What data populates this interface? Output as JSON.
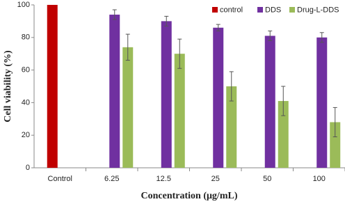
{
  "chart_data": {
    "type": "bar",
    "x_label": "Concentration (μg/mL)",
    "y_label": "Cell viability (%)",
    "categories": [
      "Control",
      "6.25",
      "12.5",
      "25",
      "50",
      "100"
    ],
    "series": [
      {
        "name": "control",
        "color": "#c00000",
        "values": [
          100,
          null,
          null,
          null,
          null,
          null
        ],
        "errors": [
          null,
          null,
          null,
          null,
          null,
          null
        ]
      },
      {
        "name": "DDS",
        "color": "#7030a0",
        "values": [
          null,
          94,
          90,
          86,
          81,
          80
        ],
        "errors": [
          null,
          3,
          3,
          2,
          3,
          3
        ]
      },
      {
        "name": "Drug-L-DDS",
        "color": "#9bbb59",
        "values": [
          null,
          74,
          70,
          50,
          41,
          28
        ],
        "errors": [
          null,
          8,
          9,
          9,
          9,
          9
        ]
      }
    ],
    "ylim": [
      0,
      100
    ],
    "yticks": [
      0,
      20,
      40,
      60,
      80,
      100
    ],
    "legend": "top-right",
    "grid": false
  }
}
